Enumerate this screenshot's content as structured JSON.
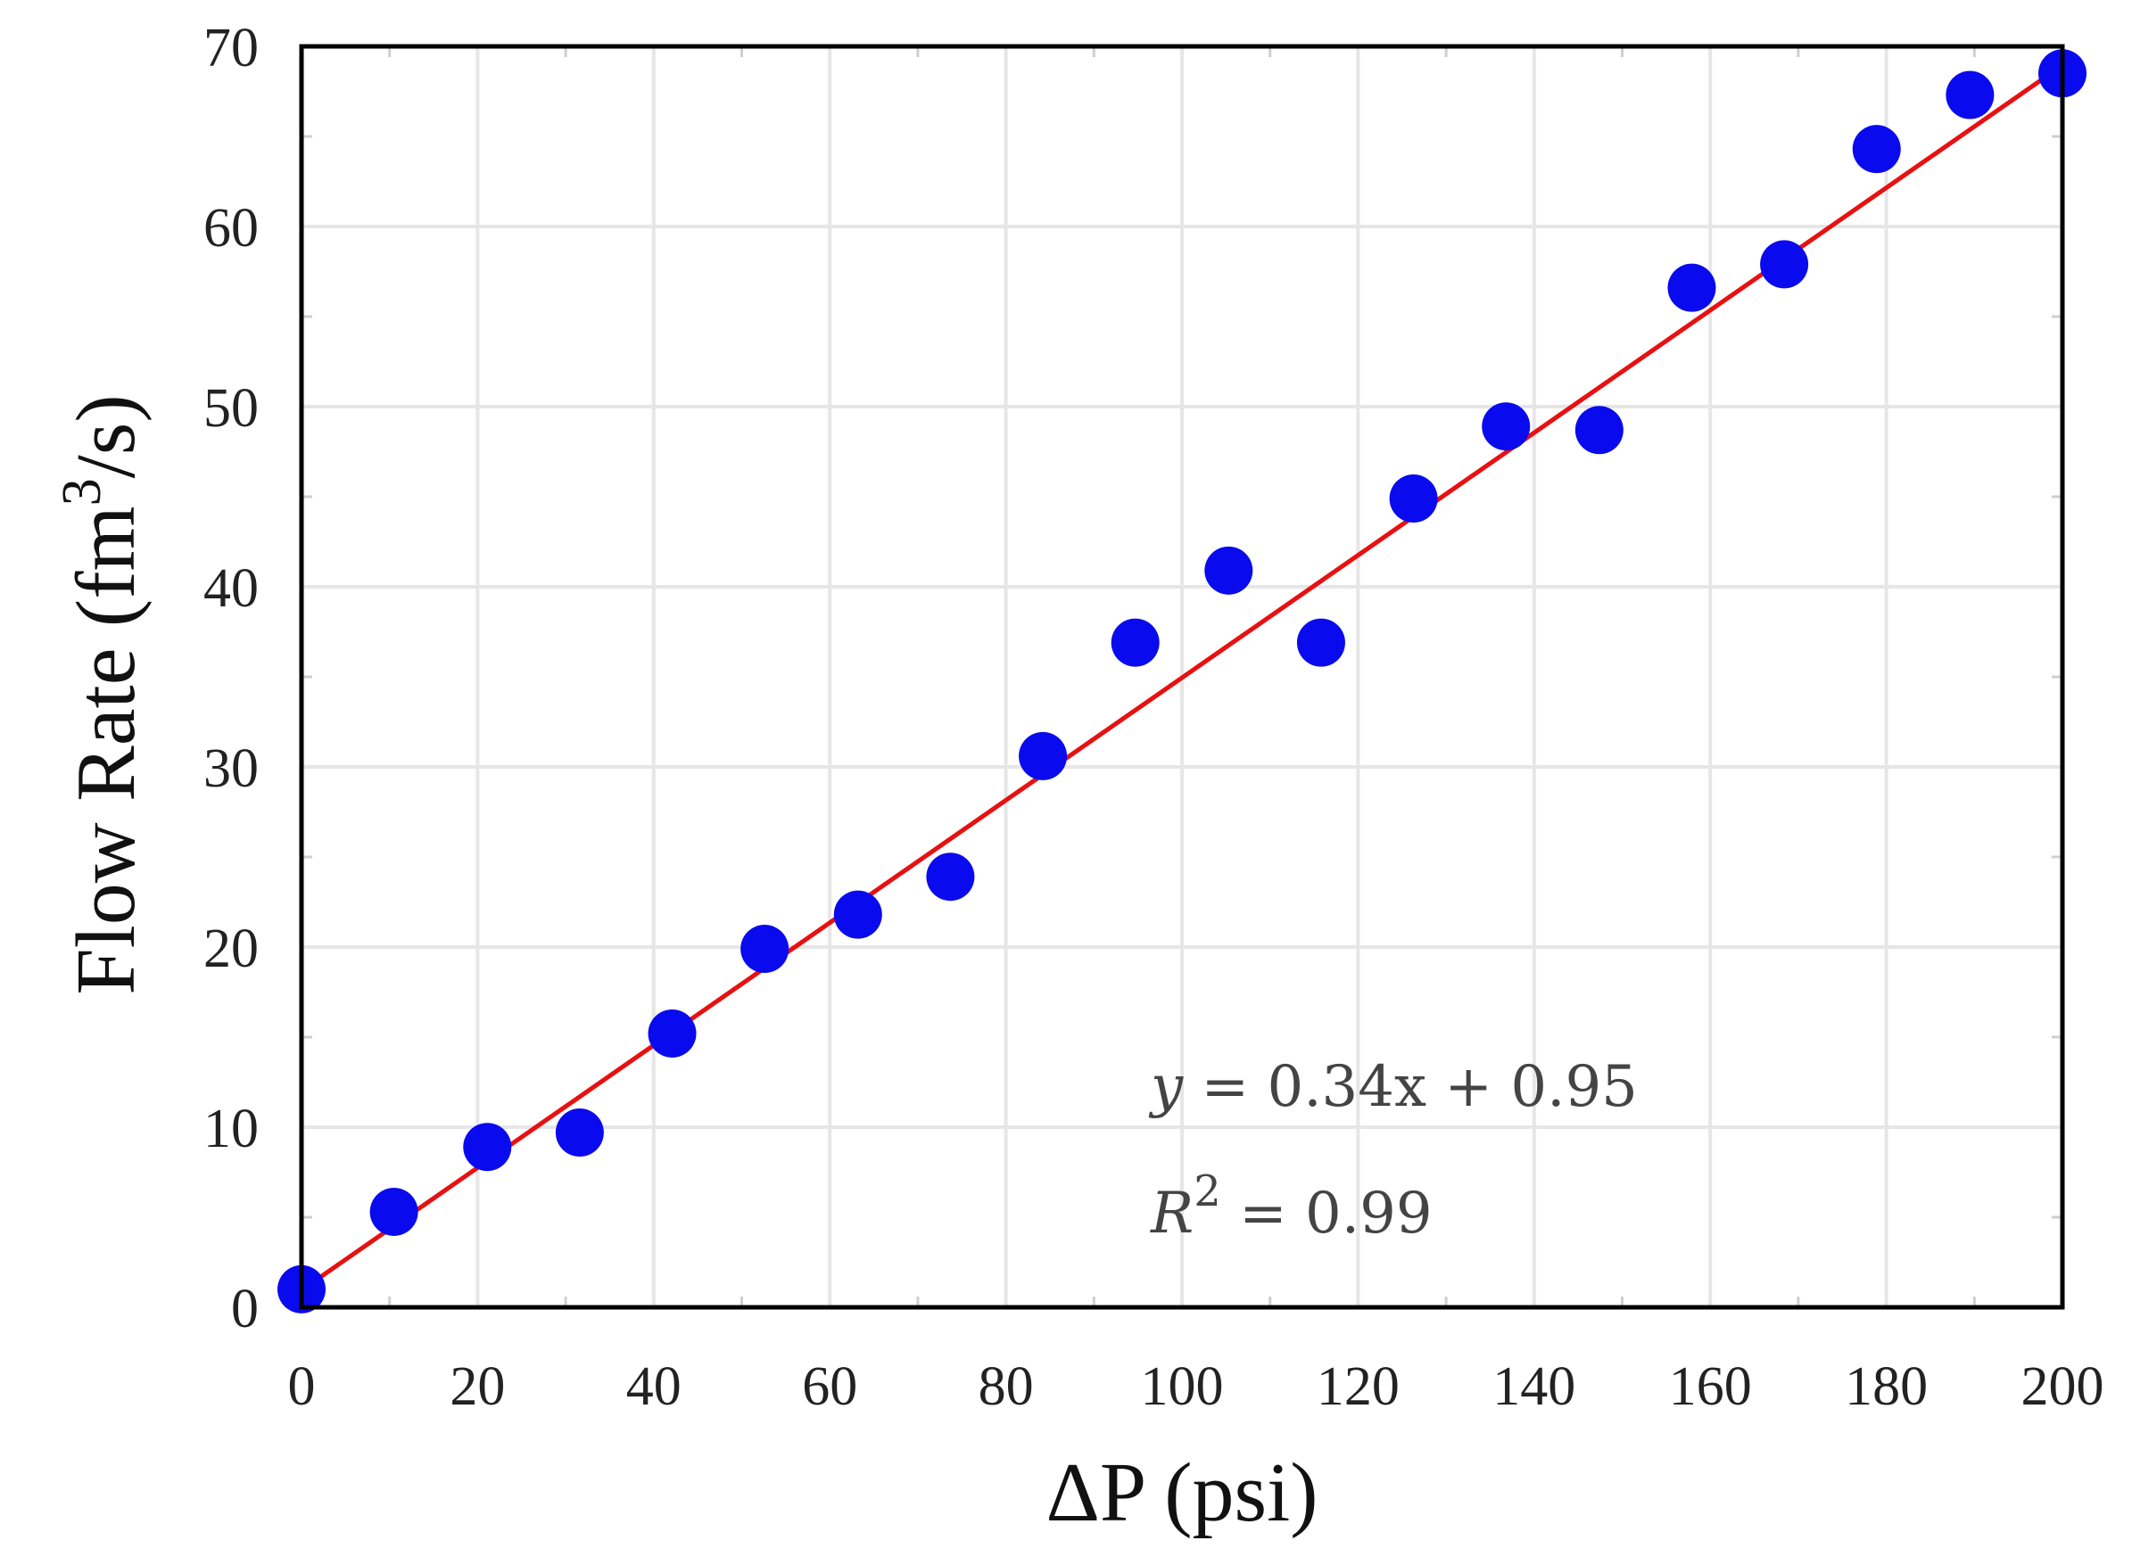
{
  "chart_data": {
    "type": "scatter",
    "xlabel": "ΔP (psi)",
    "ylabel_main": "Flow Rate (fm",
    "ylabel_sup": "3",
    "ylabel_tail": "/s)",
    "xlim": [
      0,
      200
    ],
    "ylim": [
      0,
      70
    ],
    "x_ticks": [
      0,
      20,
      40,
      60,
      80,
      100,
      120,
      140,
      160,
      180,
      200
    ],
    "y_ticks": [
      0,
      10,
      20,
      30,
      40,
      50,
      60,
      70
    ],
    "grid": true,
    "series": [
      {
        "marker_color": "#0a0aee",
        "points": [
          {
            "x": 0,
            "y": 1
          },
          {
            "x": 10.5,
            "y": 5.3
          },
          {
            "x": 21.1,
            "y": 8.9
          },
          {
            "x": 31.6,
            "y": 9.7
          },
          {
            "x": 42.1,
            "y": 15.2
          },
          {
            "x": 52.6,
            "y": 19.9
          },
          {
            "x": 63.2,
            "y": 21.8
          },
          {
            "x": 73.7,
            "y": 23.9
          },
          {
            "x": 84.2,
            "y": 30.6
          },
          {
            "x": 94.7,
            "y": 36.9
          },
          {
            "x": 105.3,
            "y": 40.9
          },
          {
            "x": 115.8,
            "y": 36.9
          },
          {
            "x": 126.3,
            "y": 44.9
          },
          {
            "x": 136.8,
            "y": 48.9
          },
          {
            "x": 147.4,
            "y": 48.7
          },
          {
            "x": 157.9,
            "y": 56.6
          },
          {
            "x": 168.4,
            "y": 57.9
          },
          {
            "x": 178.9,
            "y": 64.3
          },
          {
            "x": 189.5,
            "y": 67.3
          },
          {
            "x": 200,
            "y": 68.5
          }
        ]
      }
    ],
    "fit_line": {
      "slope": 0.34,
      "intercept": 0.95,
      "color": "#e81010"
    },
    "annotations": {
      "equation_lhs": "y",
      "equation_rhs": " = 0.34x + 0.95",
      "r2_lhs": "R",
      "r2_sup": "2",
      "r2_rhs": " = 0.99"
    }
  }
}
